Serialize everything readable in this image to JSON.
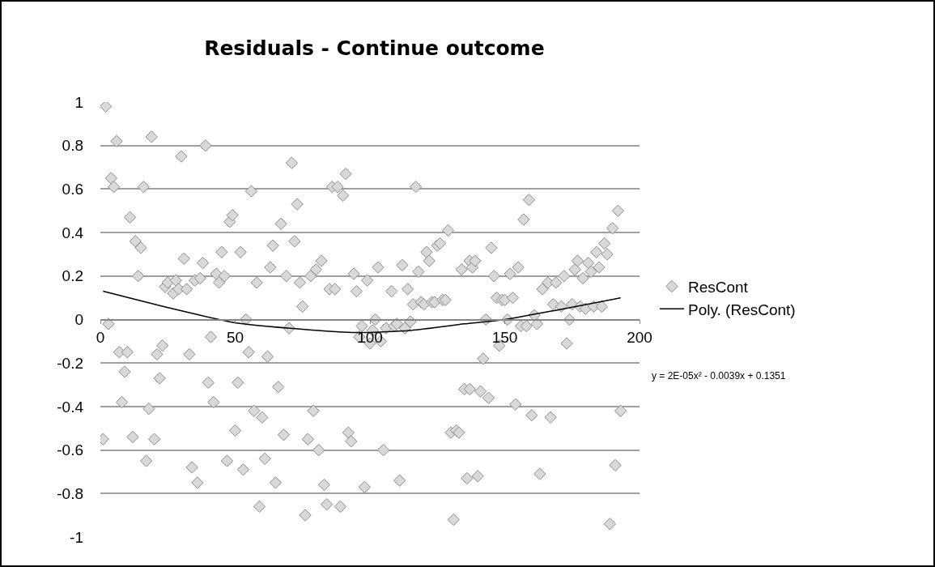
{
  "chart_data": {
    "type": "scatter",
    "title": "Residuals - Continue outcome",
    "xlim": [
      0,
      200
    ],
    "xticks": [
      0,
      50,
      100,
      150,
      200
    ],
    "ylim": [
      -1,
      1
    ],
    "yticks": [
      -1,
      -0.8,
      -0.6,
      -0.4,
      -0.2,
      0,
      0.2,
      0.4,
      0.6,
      0.8,
      1
    ],
    "grid": "y",
    "legend": "right",
    "annotations": [
      "y = 2E-05x² - 0.0039x + 0.1351"
    ],
    "series": [
      {
        "name": "ResCont",
        "marker": "diamond",
        "color": "#d9d9d9",
        "x": [
          2,
          6,
          19,
          39,
          30,
          4,
          5,
          16,
          56,
          11,
          48,
          49,
          67,
          13,
          15,
          31,
          38,
          45,
          52,
          64,
          14,
          63,
          24,
          25,
          27,
          28,
          29,
          32,
          35,
          37,
          43,
          44,
          46,
          58,
          3,
          54,
          41,
          7,
          10,
          23,
          21,
          33,
          55,
          62,
          9,
          22,
          40,
          51,
          8,
          18,
          42,
          57,
          60,
          1,
          12,
          20,
          50,
          17,
          34,
          36,
          47,
          53,
          61,
          59,
          65,
          71,
          91,
          86,
          88,
          90,
          117,
          73,
          72,
          129,
          82,
          80,
          78,
          69,
          74,
          75,
          85,
          87,
          94,
          95,
          99,
          103,
          112,
          108,
          114,
          118,
          121,
          122,
          125,
          126,
          134,
          116,
          119,
          120,
          123,
          124,
          127,
          128,
          102,
          70,
          97,
          101,
          96,
          100,
          104,
          106,
          109,
          110,
          113,
          115,
          66,
          79,
          68,
          77,
          81,
          92,
          93,
          105,
          130,
          132,
          133,
          135,
          83,
          98,
          111,
          136,
          76,
          84,
          89,
          131,
          159,
          157,
          192,
          190,
          145,
          137,
          138,
          139,
          187,
          184,
          188,
          146,
          152,
          155,
          177,
          176,
          181,
          179,
          182,
          185,
          164,
          166,
          169,
          172,
          147,
          149,
          150,
          153,
          168,
          171,
          175,
          178,
          180,
          183,
          186,
          143,
          151,
          174,
          161,
          156,
          158,
          162,
          148,
          173,
          142,
          137,
          141,
          144,
          154,
          160,
          167,
          193,
          140,
          163,
          191,
          189
        ],
        "values": [
          0.98,
          0.82,
          0.84,
          0.8,
          0.75,
          0.65,
          0.61,
          0.61,
          0.59,
          0.47,
          0.45,
          0.48,
          0.44,
          0.36,
          0.33,
          0.28,
          0.26,
          0.31,
          0.31,
          0.34,
          0.2,
          0.24,
          0.15,
          0.17,
          0.12,
          0.18,
          0.14,
          0.14,
          0.18,
          0.19,
          0.21,
          0.17,
          0.2,
          0.17,
          -0.02,
          0,
          -0.08,
          -0.15,
          -0.15,
          -0.12,
          -0.16,
          -0.16,
          -0.15,
          -0.17,
          -0.24,
          -0.27,
          -0.29,
          -0.29,
          -0.38,
          -0.41,
          -0.38,
          -0.42,
          -0.45,
          -0.55,
          -0.54,
          -0.55,
          -0.51,
          -0.65,
          -0.68,
          -0.75,
          -0.65,
          -0.69,
          -0.64,
          -0.86,
          -0.75,
          0.72,
          0.67,
          0.61,
          0.61,
          0.57,
          0.61,
          0.53,
          0.36,
          0.41,
          0.27,
          0.23,
          0.2,
          0.2,
          0.17,
          0.06,
          0.14,
          0.14,
          0.21,
          0.13,
          0.18,
          0.24,
          0.25,
          0.13,
          0.14,
          0.22,
          0.31,
          0.27,
          0.34,
          0.35,
          0.23,
          0.07,
          0.08,
          0.07,
          0.08,
          0.08,
          0.09,
          0.09,
          0,
          -0.04,
          -0.03,
          -0.05,
          -0.08,
          -0.11,
          -0.1,
          -0.04,
          -0.03,
          -0.02,
          -0.04,
          -0.01,
          -0.31,
          -0.42,
          -0.53,
          -0.55,
          -0.6,
          -0.52,
          -0.56,
          -0.6,
          -0.52,
          -0.51,
          -0.52,
          -0.32,
          -0.76,
          -0.77,
          -0.74,
          -0.73,
          -0.9,
          -0.85,
          -0.86,
          -0.92,
          0.55,
          0.46,
          0.5,
          0.42,
          0.33,
          0.27,
          0.24,
          0.27,
          0.35,
          0.31,
          0.3,
          0.2,
          0.21,
          0.24,
          0.27,
          0.23,
          0.26,
          0.19,
          0.22,
          0.24,
          0.14,
          0.17,
          0.17,
          0.2,
          0.1,
          0.09,
          0.09,
          0.1,
          0.07,
          0.06,
          0.07,
          0.06,
          0.05,
          0.06,
          0.06,
          0,
          0,
          0,
          0.02,
          -0.03,
          -0.03,
          -0.02,
          -0.12,
          -0.11,
          -0.18,
          -0.32,
          -0.33,
          -0.36,
          -0.39,
          -0.44,
          -0.45,
          -0.42,
          -0.72,
          -0.71,
          -0.67,
          -0.94
        ]
      },
      {
        "name": "Poly. (ResCont)",
        "type": "line",
        "color": "#000000",
        "x": [
          1,
          25,
          50,
          75,
          95,
          115,
          135,
          150,
          170,
          193
        ],
        "values": [
          0.13,
          0.055,
          -0.015,
          -0.045,
          -0.06,
          -0.05,
          -0.02,
          0,
          0.045,
          0.1
        ]
      }
    ]
  }
}
